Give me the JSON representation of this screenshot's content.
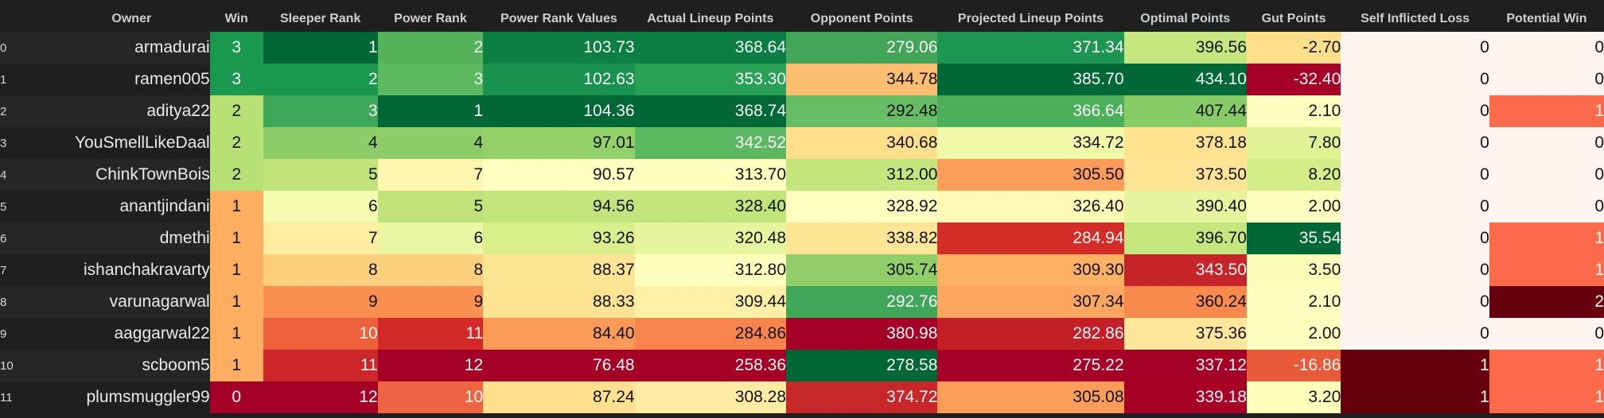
{
  "table": {
    "columns": [
      {
        "key": "index",
        "label": ""
      },
      {
        "key": "owner",
        "label": "Owner"
      },
      {
        "key": "win",
        "label": "Win"
      },
      {
        "key": "sleeper_rank",
        "label": "Sleeper Rank"
      },
      {
        "key": "power_rank",
        "label": "Power Rank"
      },
      {
        "key": "power_rank_values",
        "label": "Power Rank Values"
      },
      {
        "key": "actual_lineup_points",
        "label": "Actual Lineup Points"
      },
      {
        "key": "opponent_points",
        "label": "Opponent Points"
      },
      {
        "key": "projected_lineup_points",
        "label": "Projected Lineup Points"
      },
      {
        "key": "optimal_points",
        "label": "Optimal Points"
      },
      {
        "key": "gut_points",
        "label": "Gut Points"
      },
      {
        "key": "self_inflicted_loss",
        "label": "Self Inflicted Loss"
      },
      {
        "key": "potential_win",
        "label": "Potential Win"
      }
    ],
    "rows": [
      {
        "index": "0",
        "owner": "armadurai",
        "win": "3",
        "sleeper_rank": "1",
        "power_rank": "2",
        "power_rank_values": "103.73",
        "actual_lineup_points": "368.64",
        "opponent_points": "279.06",
        "projected_lineup_points": "371.34",
        "optimal_points": "396.56",
        "gut_points": "-2.70",
        "self_inflicted_loss": "0",
        "potential_win": "0",
        "colors": {
          "win": "#1a9850",
          "sleeper_rank": "#006837",
          "power_rank": "#52b35b",
          "power_rank_values": "#0c7f43",
          "actual_lineup_points": "#0b7f43",
          "opponent_points": "#43a558",
          "projected_lineup_points": "#1c9651",
          "optimal_points": "#c6e77f",
          "gut_points": "#fee08b",
          "self_inflicted_loss": "#fff5f0",
          "potential_win": "#fff5f0"
        }
      },
      {
        "index": "1",
        "owner": "ramen005",
        "win": "3",
        "sleeper_rank": "2",
        "power_rank": "3",
        "power_rank_values": "102.63",
        "actual_lineup_points": "353.30",
        "opponent_points": "344.78",
        "projected_lineup_points": "385.70",
        "optimal_points": "434.10",
        "gut_points": "-32.40",
        "self_inflicted_loss": "0",
        "potential_win": "0",
        "colors": {
          "win": "#1a9850",
          "sleeper_rank": "#1a9850",
          "power_rank": "#5cb85c",
          "power_rank_values": "#18924e",
          "actual_lineup_points": "#27a254",
          "opponent_points": "#fdbf6f",
          "projected_lineup_points": "#006837",
          "optimal_points": "#006837",
          "gut_points": "#a50026",
          "self_inflicted_loss": "#fff5f0",
          "potential_win": "#fff5f0"
        }
      },
      {
        "index": "2",
        "owner": "aditya22",
        "win": "2",
        "sleeper_rank": "3",
        "power_rank": "1",
        "power_rank_values": "104.36",
        "actual_lineup_points": "368.74",
        "opponent_points": "292.48",
        "projected_lineup_points": "366.64",
        "optimal_points": "407.44",
        "gut_points": "2.10",
        "self_inflicted_loss": "0",
        "potential_win": "1",
        "colors": {
          "win": "#b7e075",
          "sleeper_rank": "#3fa858",
          "power_rank": "#006837",
          "power_rank_values": "#006837",
          "actual_lineup_points": "#006837",
          "opponent_points": "#66bd63",
          "projected_lineup_points": "#4cb05a",
          "optimal_points": "#86cb66",
          "gut_points": "#fffebe",
          "self_inflicted_loss": "#fff5f0",
          "potential_win": "#fb6a4a"
        }
      },
      {
        "index": "3",
        "owner": "YouSmellLikeDaal",
        "win": "2",
        "sleeper_rank": "4",
        "power_rank": "4",
        "power_rank_values": "97.01",
        "actual_lineup_points": "342.52",
        "opponent_points": "340.68",
        "projected_lineup_points": "334.72",
        "optimal_points": "378.18",
        "gut_points": "7.80",
        "self_inflicted_loss": "0",
        "potential_win": "0",
        "colors": {
          "win": "#b7e075",
          "sleeper_rank": "#8ccd67",
          "power_rank": "#8ccd67",
          "power_rank_values": "#92d068",
          "actual_lineup_points": "#5db961",
          "opponent_points": "#fee08b",
          "projected_lineup_points": "#f0f9a8",
          "optimal_points": "#ffe38f",
          "gut_points": "#e0f295",
          "self_inflicted_loss": "#fff5f0",
          "potential_win": "#fff5f0"
        }
      },
      {
        "index": "4",
        "owner": "ChinkTownBois",
        "win": "2",
        "sleeper_rank": "5",
        "power_rank": "7",
        "power_rank_values": "90.57",
        "actual_lineup_points": "313.70",
        "opponent_points": "312.00",
        "projected_lineup_points": "305.50",
        "optimal_points": "373.50",
        "gut_points": "8.20",
        "self_inflicted_loss": "0",
        "potential_win": "0",
        "colors": {
          "win": "#b7e075",
          "sleeper_rank": "#c1e47a",
          "power_rank": "#fff6b0",
          "power_rank_values": "#ffffbf",
          "actual_lineup_points": "#ffffbe",
          "opponent_points": "#c4e57d",
          "projected_lineup_points": "#fb9d59",
          "optimal_points": "#fee494",
          "gut_points": "#d4ed88",
          "self_inflicted_loss": "#fff5f0",
          "potential_win": "#fff5f0"
        }
      },
      {
        "index": "5",
        "owner": "anantjindani",
        "win": "1",
        "sleeper_rank": "6",
        "power_rank": "5",
        "power_rank_values": "94.56",
        "actual_lineup_points": "328.40",
        "opponent_points": "328.92",
        "projected_lineup_points": "326.40",
        "optimal_points": "390.40",
        "gut_points": "2.00",
        "self_inflicted_loss": "0",
        "potential_win": "0",
        "colors": {
          "win": "#fdae61",
          "sleeper_rank": "#f4fab0",
          "power_rank": "#bfe37a",
          "power_rank_values": "#c4e57d",
          "actual_lineup_points": "#c1e47b",
          "opponent_points": "#ffffbf",
          "projected_lineup_points": "#fff9b5",
          "optimal_points": "#e6f59d",
          "gut_points": "#fffebe",
          "self_inflicted_loss": "#fff5f0",
          "potential_win": "#fff5f0"
        }
      },
      {
        "index": "6",
        "owner": "dmethi",
        "win": "1",
        "sleeper_rank": "7",
        "power_rank": "6",
        "power_rank_values": "93.26",
        "actual_lineup_points": "320.48",
        "opponent_points": "338.82",
        "projected_lineup_points": "284.94",
        "optimal_points": "396.70",
        "gut_points": "35.54",
        "self_inflicted_loss": "0",
        "potential_win": "1",
        "colors": {
          "win": "#fdae61",
          "sleeper_rank": "#ffeea0",
          "power_rank": "#eaf6a2",
          "power_rank_values": "#d9ef8b",
          "actual_lineup_points": "#e8f59f",
          "opponent_points": "#fee696",
          "projected_lineup_points": "#d42d27",
          "optimal_points": "#c4e67d",
          "gut_points": "#006837",
          "self_inflicted_loss": "#fff5f0",
          "potential_win": "#fb6a4a"
        }
      },
      {
        "index": "7",
        "owner": "ishanchakravarty",
        "win": "1",
        "sleeper_rank": "8",
        "power_rank": "8",
        "power_rank_values": "88.37",
        "actual_lineup_points": "312.80",
        "opponent_points": "305.74",
        "projected_lineup_points": "309.30",
        "optimal_points": "343.50",
        "gut_points": "3.50",
        "self_inflicted_loss": "0",
        "potential_win": "1",
        "colors": {
          "win": "#fdae61",
          "sleeper_rank": "#fed07e",
          "power_rank": "#fed07e",
          "power_rank_values": "#fee593",
          "actual_lineup_points": "#ffffbd",
          "opponent_points": "#90cf68",
          "projected_lineup_points": "#fdb163",
          "optimal_points": "#c72429",
          "gut_points": "#fbfdb8",
          "self_inflicted_loss": "#fff5f0",
          "potential_win": "#fb6a4a"
        }
      },
      {
        "index": "8",
        "owner": "varunagarwal",
        "win": "1",
        "sleeper_rank": "9",
        "power_rank": "9",
        "power_rank_values": "88.33",
        "actual_lineup_points": "309.44",
        "opponent_points": "292.76",
        "projected_lineup_points": "307.34",
        "optimal_points": "360.24",
        "gut_points": "2.10",
        "self_inflicted_loss": "0",
        "potential_win": "2",
        "colors": {
          "win": "#fdae61",
          "sleeper_rank": "#f9904f",
          "power_rank": "#f9904f",
          "power_rank_values": "#fee492",
          "actual_lineup_points": "#fff0a5",
          "opponent_points": "#41a758",
          "projected_lineup_points": "#fca65f",
          "optimal_points": "#f98a4e",
          "gut_points": "#fffebe",
          "self_inflicted_loss": "#fff5f0",
          "potential_win": "#67000d"
        }
      },
      {
        "index": "9",
        "owner": "aaggarwal22",
        "win": "1",
        "sleeper_rank": "10",
        "power_rank": "11",
        "power_rank_values": "84.40",
        "actual_lineup_points": "284.86",
        "opponent_points": "380.98",
        "projected_lineup_points": "282.86",
        "optimal_points": "375.36",
        "gut_points": "2.00",
        "self_inflicted_loss": "0",
        "potential_win": "0",
        "colors": {
          "win": "#fdae61",
          "sleeper_rank": "#ee613d",
          "power_rank": "#d22b27",
          "power_rank_values": "#fa9a57",
          "actual_lineup_points": "#f7834d",
          "opponent_points": "#a50026",
          "projected_lineup_points": "#c41e27",
          "optimal_points": "#fee79a",
          "gut_points": "#fffebe",
          "self_inflicted_loss": "#fff5f0",
          "potential_win": "#fff5f0"
        }
      },
      {
        "index": "10",
        "owner": "scboom5",
        "win": "1",
        "sleeper_rank": "11",
        "power_rank": "12",
        "power_rank_values": "76.48",
        "actual_lineup_points": "258.36",
        "opponent_points": "278.58",
        "projected_lineup_points": "275.22",
        "optimal_points": "337.12",
        "gut_points": "-16.86",
        "self_inflicted_loss": "1",
        "potential_win": "1",
        "colors": {
          "win": "#fdae61",
          "sleeper_rank": "#cd2628",
          "power_rank": "#a50026",
          "power_rank_values": "#a50026",
          "actual_lineup_points": "#a50026",
          "opponent_points": "#006837",
          "projected_lineup_points": "#a50026",
          "optimal_points": "#a50026",
          "gut_points": "#e85a38",
          "self_inflicted_loss": "#67000d",
          "potential_win": "#fb6a4a"
        }
      },
      {
        "index": "11",
        "owner": "plumsmuggler99",
        "win": "0",
        "sleeper_rank": "12",
        "power_rank": "10",
        "power_rank_values": "87.24",
        "actual_lineup_points": "308.28",
        "opponent_points": "374.72",
        "projected_lineup_points": "305.08",
        "optimal_points": "339.18",
        "gut_points": "3.20",
        "self_inflicted_loss": "1",
        "potential_win": "1",
        "colors": {
          "win": "#a50026",
          "sleeper_rank": "#a50026",
          "power_rank": "#ef6542",
          "power_rank_values": "#fee08e",
          "actual_lineup_points": "#ffeca2",
          "opponent_points": "#c8272a",
          "projected_lineup_points": "#fb9d59",
          "optimal_points": "#a70226",
          "gut_points": "#fcfeba",
          "self_inflicted_loss": "#67000d",
          "potential_win": "#fb6a4a"
        }
      }
    ]
  }
}
